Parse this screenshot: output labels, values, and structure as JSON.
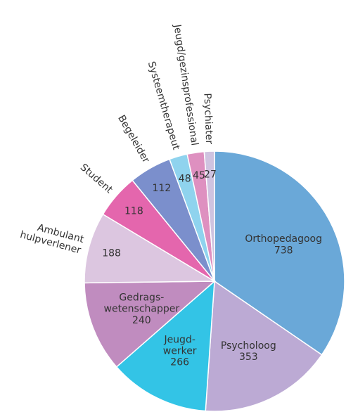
{
  "chart_data": {
    "type": "pie",
    "categories": [
      "Orthopedagoog",
      "Psycholoog",
      "Jeugd-\nwerker",
      "Gedrags-\nwetenschapper",
      "Ambulant\nhulpverlener",
      "Student",
      "Begeleider",
      "Systeemtherapeut",
      "Jeugd/gezinsprofessional",
      "Psychiater"
    ],
    "values": [
      738,
      353,
      266,
      240,
      188,
      118,
      112,
      48,
      45,
      27
    ],
    "colors": [
      "#6aa8d8",
      "#bcaad4",
      "#33c4e6",
      "#c08cbf",
      "#dcc6e0",
      "#e466ad",
      "#7b8fcc",
      "#8fd3ee",
      "#de90c0",
      "#cfc3e0"
    ],
    "inside_labels": [
      true,
      true,
      true,
      true,
      false,
      false,
      false,
      false,
      false,
      false
    ]
  }
}
